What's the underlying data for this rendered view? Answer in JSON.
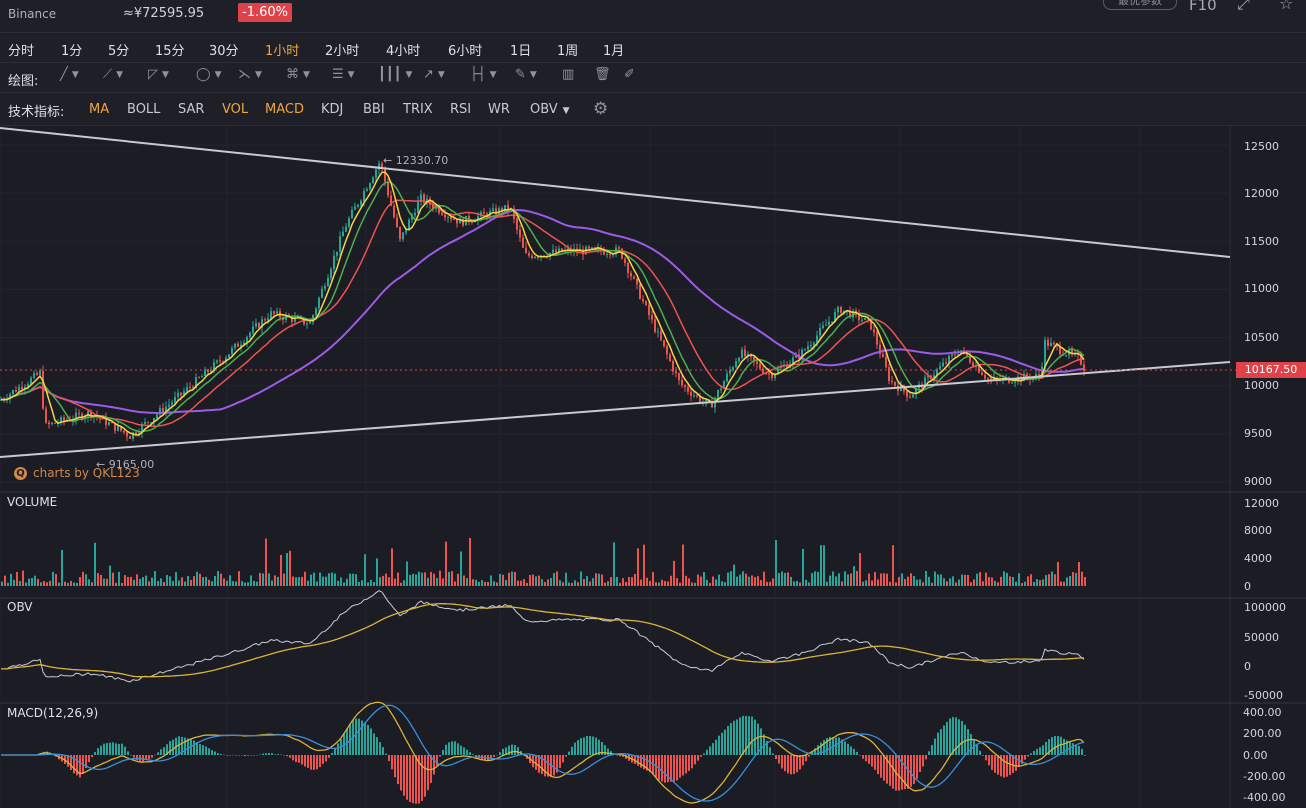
{
  "header": {
    "exchange": "Binance",
    "price": "≈¥72595.95",
    "change": "-1.60%",
    "options_label": "最优参数",
    "f10_label": "F10"
  },
  "timeframes": [
    "分时",
    "1分",
    "5分",
    "15分",
    "30分",
    "1小时",
    "2小时",
    "4小时",
    "6小时",
    "1日",
    "1周",
    "1月"
  ],
  "active_timeframe": "1小时",
  "drawing_label": "绘图:",
  "drawing_tools": [
    "line-tool-icon",
    "pen-tool-icon",
    "channel-tool-icon",
    "shape-tool-icon",
    "zigzag-tool-icon",
    "pattern-tool-icon",
    "fib-tool-icon",
    "gann-tool-icon",
    "arrow-tool-icon",
    "measure-tool-icon",
    "text-tool-icon",
    "bars-icon",
    "trash-icon",
    "brush-icon"
  ],
  "indicator_label": "技术指标:",
  "indicators": [
    {
      "name": "MA",
      "on": true
    },
    {
      "name": "BOLL",
      "on": false
    },
    {
      "name": "SAR",
      "on": false
    },
    {
      "name": "VOL",
      "on": true
    },
    {
      "name": "MACD",
      "on": true
    },
    {
      "name": "KDJ",
      "on": false
    },
    {
      "name": "BBI",
      "on": false
    },
    {
      "name": "TRIX",
      "on": false
    },
    {
      "name": "RSI",
      "on": false
    },
    {
      "name": "WR",
      "on": false
    },
    {
      "name": "OBV",
      "on": false
    }
  ],
  "price_axis": [
    "12500",
    "12000",
    "11500",
    "11000",
    "10500",
    "10000",
    "9500",
    "9000"
  ],
  "current_price": "10167.50",
  "high_annotation": "← 12330.70",
  "low_annotation": "← 9165.00",
  "watermark": "charts by QKL123",
  "panes": {
    "volume": {
      "label": "VOLUME",
      "axis": [
        "12000",
        "8000",
        "4000",
        "0"
      ]
    },
    "obv": {
      "label": "OBV",
      "axis": [
        "100000",
        "50000",
        "0",
        "-50000"
      ]
    },
    "macd": {
      "label": "MACD(12,26,9)",
      "axis": [
        "400.00",
        "200.00",
        "0.00",
        "-200.00",
        "-400.00"
      ]
    }
  },
  "colors": {
    "up": "#26a69a",
    "down": "#ef5350",
    "ma5": "#f5d742",
    "ma10": "#4caf50",
    "ma20": "#ef5350",
    "ma60": "#9c5be8",
    "accent": "#f0a640"
  },
  "chart_data": {
    "type": "candlestick",
    "price_anchors": [
      [
        0,
        9850
      ],
      [
        40,
        10130
      ],
      [
        45,
        9580
      ],
      [
        90,
        9720
      ],
      [
        130,
        9480
      ],
      [
        180,
        9900
      ],
      [
        230,
        10350
      ],
      [
        270,
        10750
      ],
      [
        310,
        10650
      ],
      [
        345,
        11650
      ],
      [
        380,
        12330
      ],
      [
        400,
        11500
      ],
      [
        420,
        11950
      ],
      [
        460,
        11700
      ],
      [
        510,
        11850
      ],
      [
        525,
        11350
      ],
      [
        570,
        11400
      ],
      [
        620,
        11400
      ],
      [
        680,
        10020
      ],
      [
        710,
        9780
      ],
      [
        740,
        10350
      ],
      [
        770,
        10110
      ],
      [
        800,
        10320
      ],
      [
        840,
        10800
      ],
      [
        870,
        10650
      ],
      [
        890,
        10050
      ],
      [
        910,
        9900
      ],
      [
        960,
        10380
      ],
      [
        990,
        10050
      ],
      [
        1040,
        10100
      ],
      [
        1045,
        10450
      ],
      [
        1080,
        10270
      ],
      [
        1085,
        10167
      ]
    ],
    "ylim": [
      9000,
      12600
    ]
  }
}
